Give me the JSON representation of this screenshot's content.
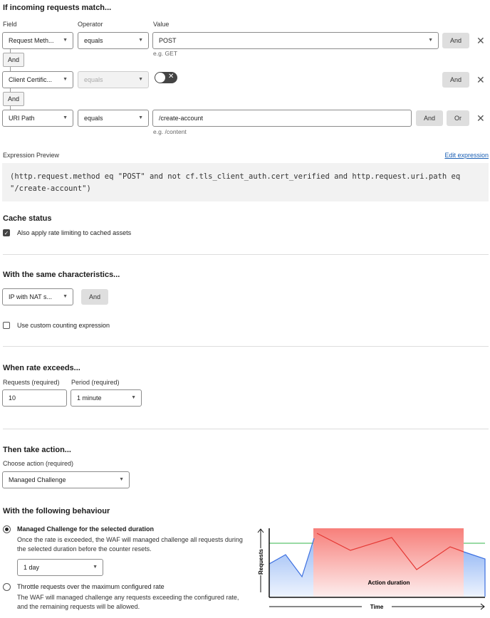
{
  "match": {
    "heading": "If incoming requests match...",
    "col_field": "Field",
    "col_operator": "Operator",
    "col_value": "Value",
    "rows": [
      {
        "field": "Request Meth...",
        "operator": "equals",
        "value": "POST",
        "hint": "e.g. GET",
        "and": "And"
      },
      {
        "field": "Client Certific...",
        "operator": "equals",
        "toggle": "off",
        "and": "And"
      },
      {
        "field": "URI Path",
        "operator": "equals",
        "value": "/create-account",
        "hint": "e.g. /content",
        "and": "And",
        "or": "Or"
      }
    ],
    "connector": "And"
  },
  "expression": {
    "label": "Expression Preview",
    "edit_link": "Edit expression",
    "text": "(http.request.method eq \"POST\" and not cf.tls_client_auth.cert_verified and http.request.uri.path eq \"/create-account\")"
  },
  "cache": {
    "heading": "Cache status",
    "checkbox_label": "Also apply rate limiting to cached assets",
    "checked": true
  },
  "characteristics": {
    "heading": "With the same characteristics...",
    "field": "IP with NAT s...",
    "and": "And",
    "custom_label": "Use custom counting expression",
    "custom_checked": false
  },
  "rate": {
    "heading": "When rate exceeds...",
    "requests_label": "Requests (required)",
    "requests_value": "10",
    "period_label": "Period (required)",
    "period_value": "1 minute"
  },
  "action": {
    "heading": "Then take action...",
    "choose_label": "Choose action (required)",
    "value": "Managed Challenge"
  },
  "behaviour": {
    "heading": "With the following behaviour",
    "options": [
      {
        "title": "Managed Challenge for the selected duration",
        "desc": "Once the rate is exceeded, the WAF will managed challenge all requests during the selected duration before the counter resets.",
        "selected": true,
        "duration": "1 day"
      },
      {
        "title": "Throttle requests over the maximum configured rate",
        "desc": "The WAF will managed challenge any requests exceeding the configured rate, and the remaining requests will be allowed.",
        "selected": false
      }
    ]
  },
  "illustration": {
    "y_label": "Requests",
    "x_label": "Time",
    "region_label": "Action duration",
    "colors": {
      "threshold": "#5cc46e",
      "below": "#3b6fe0",
      "above": "#e53935",
      "region": "#f77f7a"
    }
  }
}
